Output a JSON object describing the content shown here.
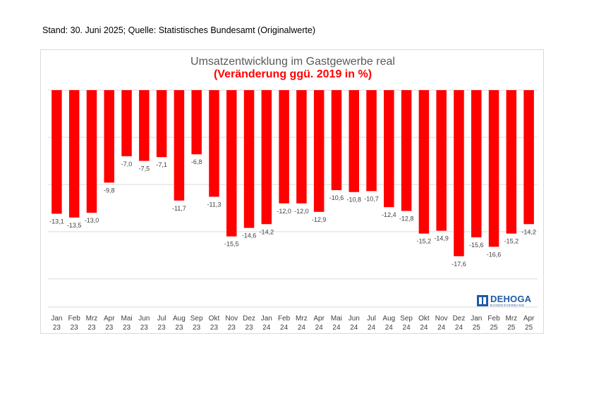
{
  "header": {
    "stand": "Stand: 30. Juni 2025; Quelle: Statistisches Bundesamt (Originalwerte)"
  },
  "logo": {
    "name": "DEHOGA",
    "sub": "BUNDESVERBAND"
  },
  "colors": {
    "bar": "#ff0000",
    "title": "#595959",
    "subtitle": "#ff0000",
    "grid": "#d9d9d9"
  },
  "chart_data": {
    "type": "bar",
    "title": "Umsatzentwicklung im Gastgewerbe real",
    "subtitle": "(Veränderung ggü. 2019 in %)",
    "categories": [
      [
        "Jan",
        "23"
      ],
      [
        "Feb",
        "23"
      ],
      [
        "Mrz",
        "23"
      ],
      [
        "Apr",
        "23"
      ],
      [
        "Mai",
        "23"
      ],
      [
        "Jun",
        "23"
      ],
      [
        "Jul",
        "23"
      ],
      [
        "Aug",
        "23"
      ],
      [
        "Sep",
        "23"
      ],
      [
        "Okt",
        "23"
      ],
      [
        "Nov",
        "23"
      ],
      [
        "Dez",
        "23"
      ],
      [
        "Jan",
        "24"
      ],
      [
        "Feb",
        "24"
      ],
      [
        "Mrz",
        "24"
      ],
      [
        "Apr",
        "24"
      ],
      [
        "Mai",
        "24"
      ],
      [
        "Jun",
        "24"
      ],
      [
        "Jul",
        "24"
      ],
      [
        "Aug",
        "24"
      ],
      [
        "Sep",
        "24"
      ],
      [
        "Okt",
        "24"
      ],
      [
        "Nov",
        "24"
      ],
      [
        "Dez",
        "24"
      ],
      [
        "Jan",
        "25"
      ],
      [
        "Feb",
        "25"
      ],
      [
        "Mrz",
        "25"
      ],
      [
        "Apr",
        "25"
      ]
    ],
    "values": [
      -13.1,
      -13.5,
      -13.0,
      -9.8,
      -7.0,
      -7.5,
      -7.1,
      -11.7,
      -6.8,
      -11.3,
      -15.5,
      -14.6,
      -14.2,
      -12.0,
      -12.0,
      -12.9,
      -10.6,
      -10.8,
      -10.7,
      -12.4,
      -12.8,
      -15.2,
      -14.9,
      -17.6,
      -15.6,
      -16.6,
      -15.2,
      -14.2
    ],
    "labels": [
      "-13,1",
      "-13,5",
      "-13,0",
      "-9,8",
      "-7,0",
      "-7,5",
      "-7,1",
      "-11,7",
      "-6,8",
      "-11,3",
      "-15,5",
      "-14,6",
      "-14,2",
      "-12,0",
      "-12,0",
      "-12,9",
      "-10,6",
      "-10,8",
      "-10,7",
      "-12,4",
      "-12,8",
      "-15,2",
      "-14,9",
      "-17,6",
      "-15,6",
      "-16,6",
      "-15,2",
      "-14,2"
    ],
    "ylim": [
      -22,
      0
    ],
    "grid": true,
    "legend": "none"
  }
}
